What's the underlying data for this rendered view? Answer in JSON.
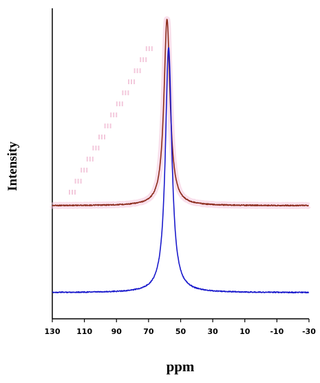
{
  "chart_data": {
    "type": "line",
    "title": "",
    "xlabel": "ppm",
    "ylabel": "Intensity",
    "xlim": [
      130,
      -30
    ],
    "x_reversed": true,
    "xticks": [
      130,
      110,
      90,
      70,
      50,
      30,
      10,
      -10,
      -30
    ],
    "yticks_visible": false,
    "grid": false,
    "legend": "none",
    "series": [
      {
        "color": "#8b2a1a",
        "baseline": 0.46,
        "peak_ppm": 58.5,
        "peak_intensity": 1.0,
        "half_width_ppm": 2.3,
        "fill": "#f4c6dc"
      },
      {
        "color": "#1a1acc",
        "baseline": 0.0,
        "peak_ppm": 57.5,
        "peak_intensity": 0.99,
        "half_width_ppm": 2.4,
        "fill": "none"
      }
    ]
  }
}
